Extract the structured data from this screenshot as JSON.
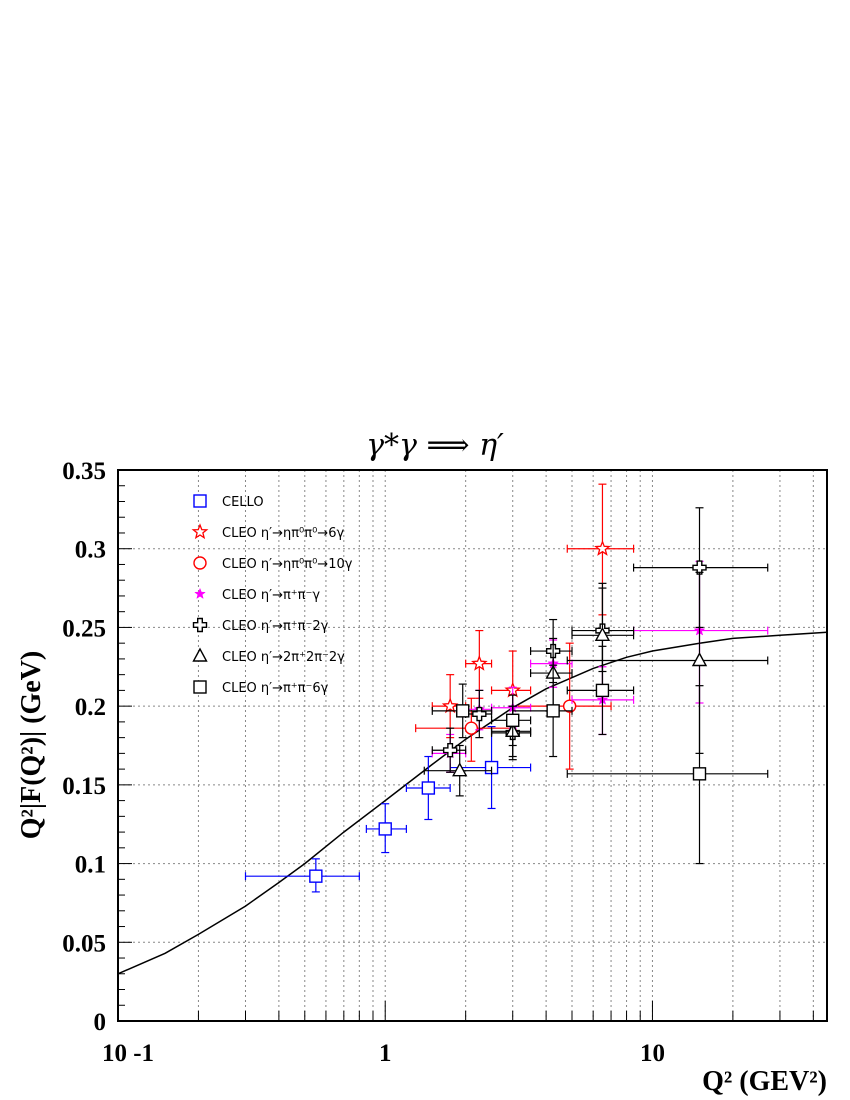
{
  "chart_data": {
    "type": "scatter",
    "title": "γ*γ ⟹ η′",
    "xlabel": "Q² (GEV²)",
    "ylabel": "Q²|F(Q²)| (GeV)",
    "xscale": "log",
    "xlim": [
      0.1,
      45
    ],
    "ylim": [
      0,
      0.35
    ],
    "grid": true,
    "legend_position": "top-left",
    "x_tick_labels": [
      "10 -1",
      "1",
      "10"
    ],
    "y_tick_labels": [
      "0",
      "0.05",
      "0.1",
      "0.15",
      "0.2",
      "0.25",
      "0.3",
      "0.35"
    ],
    "series": [
      {
        "name": "CELLO",
        "color": "#0000ff",
        "marker": "open-square",
        "points": [
          {
            "x": 0.55,
            "xlo": 0.3,
            "xhi": 0.8,
            "y": 0.092,
            "ylo": 0.082,
            "yhi": 0.103
          },
          {
            "x": 1.0,
            "xlo": 0.85,
            "xhi": 1.2,
            "y": 0.122,
            "ylo": 0.107,
            "yhi": 0.138
          },
          {
            "x": 1.45,
            "xlo": 1.2,
            "xhi": 1.75,
            "y": 0.148,
            "ylo": 0.128,
            "yhi": 0.168
          },
          {
            "x": 2.5,
            "xlo": 1.75,
            "xhi": 3.5,
            "y": 0.161,
            "ylo": 0.135,
            "yhi": 0.187
          }
        ]
      },
      {
        "name": "CLEO η′→ηπ⁰π⁰→6γ",
        "color": "#ff0000",
        "marker": "open-star",
        "points": [
          {
            "x": 1.75,
            "xlo": 1.5,
            "xhi": 2.0,
            "y": 0.2,
            "ylo": 0.18,
            "yhi": 0.22
          },
          {
            "x": 2.25,
            "xlo": 2.0,
            "xhi": 2.5,
            "y": 0.227,
            "ylo": 0.205,
            "yhi": 0.248
          },
          {
            "x": 3.0,
            "xlo": 2.5,
            "xhi": 3.5,
            "y": 0.21,
            "ylo": 0.185,
            "yhi": 0.235
          },
          {
            "x": 6.5,
            "xlo": 4.8,
            "xhi": 8.5,
            "y": 0.3,
            "ylo": 0.258,
            "yhi": 0.341
          }
        ]
      },
      {
        "name": "CLEO η′→ηπ⁰π⁰→10γ",
        "color": "#ff0000",
        "marker": "open-circle",
        "points": [
          {
            "x": 2.1,
            "xlo": 1.3,
            "xhi": 3.0,
            "y": 0.186,
            "ylo": 0.165,
            "yhi": 0.205
          },
          {
            "x": 4.9,
            "xlo": 3.0,
            "xhi": 7.0,
            "y": 0.2,
            "ylo": 0.16,
            "yhi": 0.24
          }
        ]
      },
      {
        "name": "CLEO η′→π⁺π⁻γ",
        "color": "#ff00ff",
        "marker": "filled-star",
        "points": [
          {
            "x": 1.75,
            "xlo": 1.5,
            "xhi": 2.0,
            "y": 0.17,
            "ylo": 0.158,
            "yhi": 0.182
          },
          {
            "x": 2.25,
            "xlo": 2.0,
            "xhi": 2.5,
            "y": 0.198,
            "ylo": 0.185,
            "yhi": 0.21
          },
          {
            "x": 3.0,
            "xlo": 2.5,
            "xhi": 3.5,
            "y": 0.199,
            "ylo": 0.186,
            "yhi": 0.212
          },
          {
            "x": 4.25,
            "xlo": 3.5,
            "xhi": 5.0,
            "y": 0.227,
            "ylo": 0.212,
            "yhi": 0.242
          },
          {
            "x": 6.5,
            "xlo": 5.0,
            "xhi": 8.5,
            "y": 0.204,
            "ylo": 0.182,
            "yhi": 0.225
          },
          {
            "x": 15.0,
            "xlo": 8.5,
            "xhi": 27.0,
            "y": 0.248,
            "ylo": 0.202,
            "yhi": 0.292
          }
        ]
      },
      {
        "name": "CLEO η′→π⁺π⁻2γ",
        "color": "#000000",
        "marker": "open-cross",
        "points": [
          {
            "x": 1.75,
            "xlo": 1.5,
            "xhi": 2.0,
            "y": 0.172,
            "ylo": 0.158,
            "yhi": 0.186
          },
          {
            "x": 2.25,
            "xlo": 2.0,
            "xhi": 2.5,
            "y": 0.195,
            "ylo": 0.18,
            "yhi": 0.21
          },
          {
            "x": 3.0,
            "xlo": 2.5,
            "xhi": 3.5,
            "y": 0.183,
            "ylo": 0.166,
            "yhi": 0.2
          },
          {
            "x": 4.25,
            "xlo": 3.5,
            "xhi": 5.0,
            "y": 0.235,
            "ylo": 0.215,
            "yhi": 0.255
          },
          {
            "x": 6.5,
            "xlo": 5.0,
            "xhi": 8.5,
            "y": 0.248,
            "ylo": 0.222,
            "yhi": 0.275
          },
          {
            "x": 15.0,
            "xlo": 8.5,
            "xhi": 27.0,
            "y": 0.288,
            "ylo": 0.25,
            "yhi": 0.326
          }
        ]
      },
      {
        "name": "CLEO η′→2π⁺2π⁻2γ",
        "color": "#000000",
        "marker": "open-triangle",
        "points": [
          {
            "x": 1.9,
            "xlo": 1.4,
            "xhi": 2.5,
            "y": 0.159,
            "ylo": 0.143,
            "yhi": 0.175
          },
          {
            "x": 3.0,
            "xlo": 2.5,
            "xhi": 3.5,
            "y": 0.184,
            "ylo": 0.168,
            "yhi": 0.2
          },
          {
            "x": 4.25,
            "xlo": 3.5,
            "xhi": 5.0,
            "y": 0.221,
            "ylo": 0.2,
            "yhi": 0.243
          },
          {
            "x": 6.5,
            "xlo": 5.0,
            "xhi": 8.5,
            "y": 0.245,
            "ylo": 0.21,
            "yhi": 0.278
          },
          {
            "x": 15.0,
            "xlo": 4.8,
            "xhi": 27.0,
            "y": 0.229,
            "ylo": 0.17,
            "yhi": 0.285
          }
        ]
      },
      {
        "name": "CLEO η′→π⁺π⁻6γ",
        "color": "#000000",
        "marker": "open-square",
        "points": [
          {
            "x": 1.95,
            "xlo": 1.5,
            "xhi": 2.5,
            "y": 0.197,
            "ylo": 0.18,
            "yhi": 0.214
          },
          {
            "x": 3.0,
            "xlo": 2.5,
            "xhi": 3.5,
            "y": 0.191,
            "ylo": 0.175,
            "yhi": 0.207
          },
          {
            "x": 4.25,
            "xlo": 3.0,
            "xhi": 5.0,
            "y": 0.197,
            "ylo": 0.168,
            "yhi": 0.226
          },
          {
            "x": 6.5,
            "xlo": 4.8,
            "xhi": 8.5,
            "y": 0.21,
            "ylo": 0.182,
            "yhi": 0.238
          },
          {
            "x": 15.0,
            "xlo": 4.8,
            "xhi": 27.0,
            "y": 0.157,
            "ylo": 0.1,
            "yhi": 0.213
          }
        ]
      }
    ],
    "curve": {
      "color": "#000000",
      "x": [
        0.1,
        0.15,
        0.2,
        0.3,
        0.4,
        0.5,
        0.7,
        1.0,
        1.5,
        2.0,
        3.0,
        4.0,
        6.0,
        8.0,
        10.0,
        15.0,
        20.0,
        30.0,
        45.0
      ],
      "y": [
        0.03,
        0.043,
        0.055,
        0.073,
        0.088,
        0.1,
        0.12,
        0.14,
        0.163,
        0.179,
        0.199,
        0.211,
        0.224,
        0.231,
        0.235,
        0.24,
        0.243,
        0.245,
        0.247
      ]
    }
  }
}
